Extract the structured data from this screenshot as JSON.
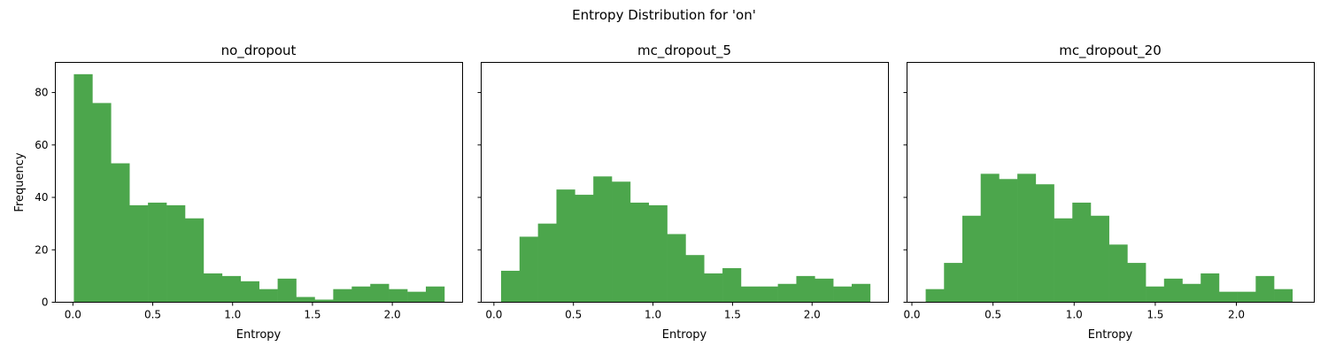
{
  "figure": {
    "title": "Entropy Distribution for 'on'",
    "ylabel": "Frequency"
  },
  "colors": {
    "bar": "#4ca64c",
    "axis": "#000000"
  },
  "chart_data": [
    {
      "type": "bar",
      "title": "no_dropout",
      "xlabel": "Entropy",
      "ylabel": "Frequency",
      "xlim": [
        -0.11,
        2.44
      ],
      "ylim": [
        0,
        91.5
      ],
      "xticks": [
        0.0,
        0.5,
        1.0,
        1.5,
        2.0
      ],
      "xtick_labels": [
        "0.0",
        "0.5",
        "1.0",
        "1.5",
        "2.0"
      ],
      "yticks": [
        0,
        20,
        40,
        60,
        80
      ],
      "ytick_labels": [
        "0",
        "20",
        "40",
        "60",
        "80"
      ],
      "bin_start": 0.006,
      "bin_width": 0.116,
      "values": [
        87,
        76,
        53,
        37,
        38,
        37,
        32,
        11,
        10,
        8,
        5,
        9,
        2,
        1,
        5,
        6,
        7,
        5,
        4,
        6
      ]
    },
    {
      "type": "bar",
      "title": "mc_dropout_5",
      "xlabel": "Entropy",
      "xlim": [
        -0.08,
        2.48
      ],
      "ylim": [
        0,
        91.5
      ],
      "xticks": [
        0.0,
        0.5,
        1.0,
        1.5,
        2.0
      ],
      "xtick_labels": [
        "0.0",
        "0.5",
        "1.0",
        "1.5",
        "2.0"
      ],
      "yticks": [
        0,
        20,
        40,
        60,
        80
      ],
      "bin_start": 0.045,
      "bin_width": 0.116,
      "values": [
        12,
        25,
        30,
        43,
        41,
        48,
        46,
        38,
        37,
        26,
        18,
        11,
        13,
        6,
        6,
        7,
        10,
        9,
        6,
        7
      ]
    },
    {
      "type": "bar",
      "title": "mc_dropout_20",
      "xlabel": "Entropy",
      "xlim": [
        -0.03,
        2.48
      ],
      "ylim": [
        0,
        91.5
      ],
      "xticks": [
        0.0,
        0.5,
        1.0,
        1.5,
        2.0
      ],
      "xtick_labels": [
        "0.0",
        "0.5",
        "1.0",
        "1.5",
        "2.0"
      ],
      "yticks": [
        0,
        20,
        40,
        60,
        80
      ],
      "bin_start": 0.085,
      "bin_width": 0.113,
      "values": [
        5,
        15,
        33,
        49,
        47,
        49,
        45,
        32,
        38,
        33,
        22,
        15,
        6,
        9,
        7,
        11,
        4,
        4,
        10,
        5
      ]
    }
  ]
}
